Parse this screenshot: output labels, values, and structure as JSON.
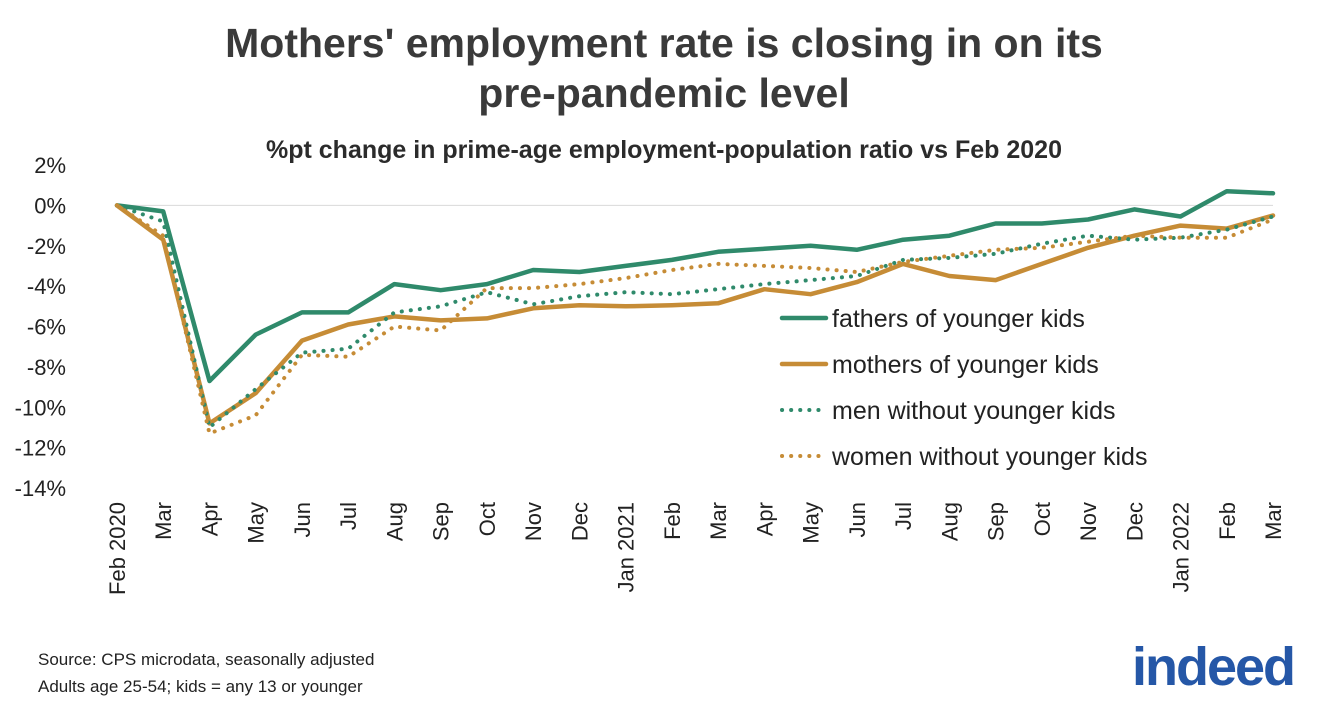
{
  "title_lines": [
    "Mothers' employment rate is closing in on its",
    "pre-pandemic level"
  ],
  "chart_data": {
    "type": "line",
    "title": "Mothers' employment rate is closing in on its pre-pandemic level",
    "subtitle": "%pt change in prime-age employment-population ratio vs Feb 2020",
    "xlabel": "",
    "ylabel": "",
    "ylim": [
      -14,
      2
    ],
    "yticks": [
      2,
      0,
      -2,
      -4,
      -6,
      -8,
      -10,
      -12,
      -14
    ],
    "ytick_labels": [
      "2%",
      "0%",
      "-2%",
      "-4%",
      "-6%",
      "-8%",
      "-10%",
      "-12%",
      "-14%"
    ],
    "categories": [
      "Feb 2020",
      "Mar",
      "Apr",
      "May",
      "Jun",
      "Jul",
      "Aug",
      "Sep",
      "Oct",
      "Nov",
      "Dec",
      "Jan 2021",
      "Feb",
      "Mar",
      "Apr",
      "May",
      "Jun",
      "Jul",
      "Aug",
      "Sep",
      "Oct",
      "Nov",
      "Dec",
      "Jan 2022",
      "Feb",
      "Mar"
    ],
    "legend_position": "right-middle",
    "series": [
      {
        "name": "fathers of younger kids",
        "color": "#2f8a6b",
        "style": "solid",
        "values": [
          0,
          -0.3,
          -8.7,
          -6.4,
          -5.3,
          -5.3,
          -3.9,
          -4.2,
          -3.9,
          -3.2,
          -3.3,
          -3.0,
          -2.7,
          -2.3,
          -2.15,
          -2.0,
          -2.2,
          -1.7,
          -1.5,
          -0.9,
          -0.9,
          -0.7,
          -0.2,
          -0.55,
          0.7,
          0.6
        ]
      },
      {
        "name": "mothers of younger kids",
        "color": "#c68c36",
        "style": "solid",
        "values": [
          0,
          -1.7,
          -10.8,
          -9.3,
          -6.7,
          -5.9,
          -5.5,
          -5.7,
          -5.6,
          -5.1,
          -4.95,
          -5.0,
          -4.95,
          -4.85,
          -4.15,
          -4.4,
          -3.8,
          -2.9,
          -3.5,
          -3.7,
          -2.9,
          -2.1,
          -1.5,
          -1.0,
          -1.15,
          -0.5
        ]
      },
      {
        "name": "men without younger kids",
        "color": "#2f8a6b",
        "style": "dotted",
        "values": [
          0,
          -0.8,
          -11.0,
          -9.1,
          -7.3,
          -7.1,
          -5.3,
          -5.0,
          -4.3,
          -4.9,
          -4.5,
          -4.3,
          -4.4,
          -4.15,
          -3.9,
          -3.7,
          -3.5,
          -2.7,
          -2.6,
          -2.4,
          -1.9,
          -1.5,
          -1.7,
          -1.6,
          -1.2,
          -0.55
        ]
      },
      {
        "name": "women without younger kids",
        "color": "#c68c36",
        "style": "dotted",
        "values": [
          0,
          -1.5,
          -11.3,
          -10.4,
          -7.4,
          -7.5,
          -6.0,
          -6.2,
          -4.1,
          -4.1,
          -3.9,
          -3.6,
          -3.2,
          -2.9,
          -3.0,
          -3.1,
          -3.3,
          -2.8,
          -2.5,
          -2.2,
          -2.1,
          -1.8,
          -1.5,
          -1.6,
          -1.6,
          -0.7
        ]
      }
    ]
  },
  "notes": {
    "source": "Source: CPS microdata, seasonally adjusted",
    "definitions": "Adults age 25-54; kids = any 13 or younger"
  },
  "logo": {
    "text": "indeed",
    "color": "#2557a7"
  }
}
